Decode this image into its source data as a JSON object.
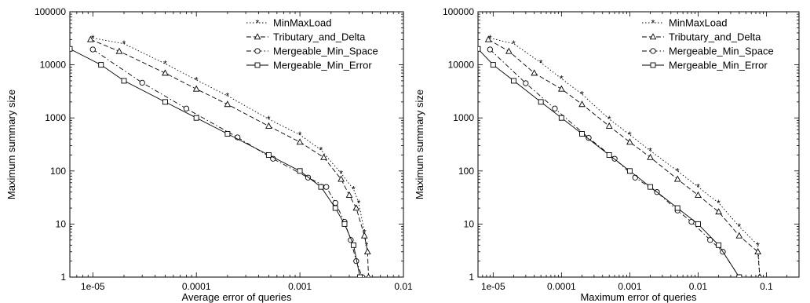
{
  "chart_data": [
    {
      "type": "line",
      "xlabel": "Average error of queries",
      "ylabel": "Maximum summary size",
      "xscale": "log",
      "yscale": "log",
      "xlim": [
        6e-06,
        0.01
      ],
      "ylim": [
        1,
        100000
      ],
      "xticks": [
        1e-05,
        0.0001,
        0.001,
        0.01
      ],
      "xtick_labels": [
        "1e-05",
        "0.0001",
        "0.001",
        "0.01"
      ],
      "yticks": [
        1,
        10,
        100,
        1000,
        10000,
        100000
      ],
      "ytick_labels": [
        "1",
        "10",
        "100",
        "1000",
        "10000",
        "100000"
      ],
      "grid": false,
      "legend_position": "top-right",
      "series": [
        {
          "name": "MinMaxLoad",
          "color": "#000000",
          "line": "dotted",
          "marker": "star",
          "points": [
            [
              1e-05,
              32000
            ],
            [
              2e-05,
              25000
            ],
            [
              5e-05,
              10500
            ],
            [
              0.0001,
              5200
            ],
            [
              0.0002,
              2600
            ],
            [
              0.0005,
              950
            ],
            [
              0.001,
              480
            ],
            [
              0.0016,
              250
            ],
            [
              0.0025,
              90
            ],
            [
              0.0033,
              45
            ],
            [
              0.0037,
              25
            ],
            [
              0.0042,
              7
            ],
            [
              0.0044,
              4
            ]
          ]
        },
        {
          "name": "Tributary_and_Delta",
          "color": "#000000",
          "line": "dashed",
          "marker": "triangle",
          "points": [
            [
              9.5e-06,
              30000
            ],
            [
              1.8e-05,
              18000
            ],
            [
              5e-05,
              7000
            ],
            [
              0.0001,
              3500
            ],
            [
              0.0002,
              1800
            ],
            [
              0.0005,
              700
            ],
            [
              0.001,
              350
            ],
            [
              0.0017,
              180
            ],
            [
              0.0025,
              70
            ],
            [
              0.003,
              35
            ],
            [
              0.0035,
              20
            ],
            [
              0.0042,
              6
            ],
            [
              0.0045,
              3
            ],
            [
              0.0046,
              1
            ]
          ]
        },
        {
          "name": "Mergeable_Min_Space",
          "color": "#000000",
          "line": "dashdot",
          "marker": "circle",
          "points": [
            [
              1e-05,
              19500
            ],
            [
              3e-05,
              4600
            ],
            [
              8e-05,
              1500
            ],
            [
              0.00025,
              430
            ],
            [
              0.00055,
              170
            ],
            [
              0.0012,
              75
            ],
            [
              0.0018,
              50
            ],
            [
              0.0022,
              25
            ],
            [
              0.0027,
              11
            ],
            [
              0.0031,
              5
            ],
            [
              0.0035,
              2
            ],
            [
              0.004,
              1
            ]
          ]
        },
        {
          "name": "Mergeable_Min_Error",
          "color": "#000000",
          "line": "solid",
          "marker": "square",
          "points": [
            [
              6e-06,
              20000
            ],
            [
              1.2e-05,
              10000
            ],
            [
              2e-05,
              5000
            ],
            [
              5e-05,
              2000
            ],
            [
              0.0001,
              1000
            ],
            [
              0.0002,
              500
            ],
            [
              0.0005,
              200
            ],
            [
              0.001,
              100
            ],
            [
              0.0016,
              50
            ],
            [
              0.0022,
              20
            ],
            [
              0.0027,
              10
            ],
            [
              0.0033,
              4
            ],
            [
              0.0038,
              1
            ]
          ]
        }
      ]
    },
    {
      "type": "line",
      "xlabel": "Maximum error of queries",
      "ylabel": "Maximum summary size",
      "xscale": "log",
      "yscale": "log",
      "xlim": [
        6e-06,
        0.3
      ],
      "ylim": [
        1,
        100000
      ],
      "xticks": [
        1e-05,
        0.0001,
        0.001,
        0.01,
        0.1
      ],
      "xtick_labels": [
        "1e-05",
        "0.0001",
        "0.001",
        "0.01",
        "0.1"
      ],
      "yticks": [
        1,
        10,
        100,
        1000,
        10000,
        100000
      ],
      "ytick_labels": [
        "1",
        "10",
        "100",
        "1000",
        "10000",
        "100000"
      ],
      "grid": false,
      "legend_position": "top-right",
      "series": [
        {
          "name": "MinMaxLoad",
          "color": "#000000",
          "line": "dotted",
          "marker": "star",
          "points": [
            [
              9e-06,
              32000
            ],
            [
              2e-05,
              25000
            ],
            [
              5e-05,
              11000
            ],
            [
              0.0001,
              5500
            ],
            [
              0.0002,
              2800
            ],
            [
              0.0005,
              950
            ],
            [
              0.001,
              480
            ],
            [
              0.002,
              240
            ],
            [
              0.005,
              100
            ],
            [
              0.01,
              50
            ],
            [
              0.02,
              25
            ],
            [
              0.04,
              9
            ],
            [
              0.075,
              4
            ],
            [
              0.08,
              1
            ]
          ]
        },
        {
          "name": "Tributary_and_Delta",
          "color": "#000000",
          "line": "dashed",
          "marker": "triangle",
          "points": [
            [
              8.5e-06,
              30000
            ],
            [
              1.7e-05,
              18000
            ],
            [
              4e-05,
              7000
            ],
            [
              0.0001,
              3500
            ],
            [
              0.0002,
              1800
            ],
            [
              0.0005,
              700
            ],
            [
              0.001,
              350
            ],
            [
              0.002,
              180
            ],
            [
              0.005,
              70
            ],
            [
              0.01,
              35
            ],
            [
              0.02,
              17
            ],
            [
              0.04,
              6
            ],
            [
              0.075,
              3
            ],
            [
              0.08,
              1
            ]
          ]
        },
        {
          "name": "Mergeable_Min_Space",
          "color": "#000000",
          "line": "dashdot",
          "marker": "circle",
          "points": [
            [
              9e-06,
              19500
            ],
            [
              3e-05,
              4500
            ],
            [
              8e-05,
              1500
            ],
            [
              0.00025,
              420
            ],
            [
              0.0006,
              170
            ],
            [
              0.0012,
              75
            ],
            [
              0.0025,
              40
            ],
            [
              0.005,
              18
            ],
            [
              0.008,
              11
            ],
            [
              0.015,
              5
            ],
            [
              0.023,
              3
            ],
            [
              0.04,
              1
            ]
          ]
        },
        {
          "name": "Mergeable_Min_Error",
          "color": "#000000",
          "line": "solid",
          "marker": "square",
          "points": [
            [
              6e-06,
              20000
            ],
            [
              1e-05,
              10000
            ],
            [
              2e-05,
              5000
            ],
            [
              5e-05,
              2000
            ],
            [
              0.0001,
              1000
            ],
            [
              0.0002,
              500
            ],
            [
              0.0005,
              200
            ],
            [
              0.001,
              100
            ],
            [
              0.002,
              50
            ],
            [
              0.005,
              20
            ],
            [
              0.01,
              10
            ],
            [
              0.02,
              4
            ],
            [
              0.04,
              1
            ]
          ]
        }
      ]
    }
  ]
}
